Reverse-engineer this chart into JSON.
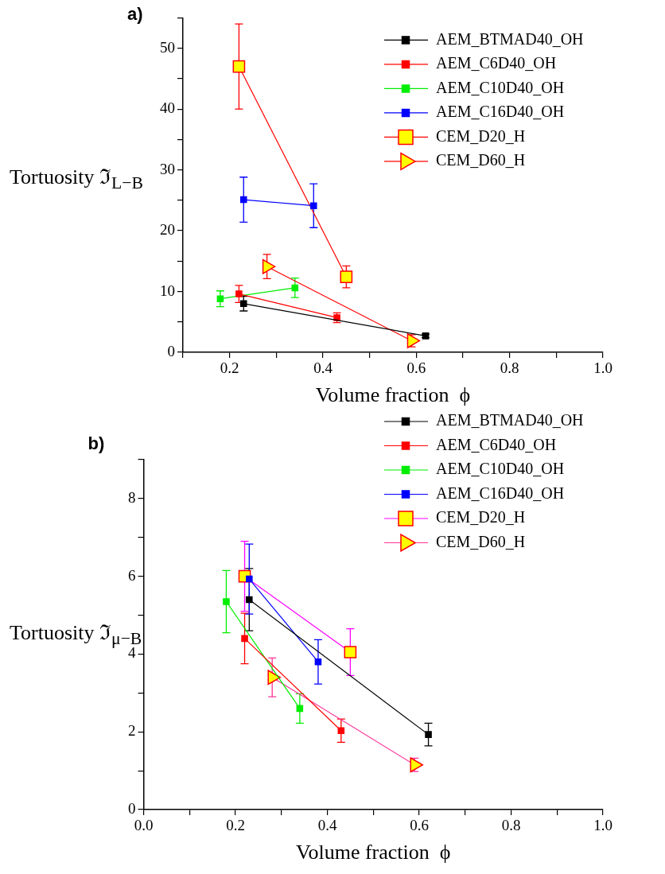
{
  "chart_data": [
    {
      "type": "line",
      "title": "a)",
      "xlabel": "Volume fraction  ϕ",
      "ylabel": "Tortuosity  ℑ$_{L−B}$",
      "xlim": [
        0.1,
        1.0
      ],
      "ylim": [
        0,
        55
      ],
      "xticks": [
        {
          "value": 0.1,
          "label": null
        },
        0.2,
        {
          "value": 0.3,
          "label": null
        },
        0.4,
        {
          "value": 0.5,
          "label": null
        },
        0.6,
        {
          "value": 0.7,
          "label": null
        },
        0.8,
        {
          "value": 0.9,
          "label": null
        },
        {
          "value": 1.0,
          "label": "1.0"
        }
      ],
      "yticks": [
        0,
        {
          "value": 5,
          "label": null
        },
        10,
        {
          "value": 15,
          "label": null
        },
        20,
        {
          "value": 25,
          "label": null
        },
        30,
        {
          "value": 35,
          "label": null
        },
        40,
        {
          "value": 45,
          "label": null
        },
        50,
        {
          "value": 55,
          "label": null
        }
      ],
      "grid": false,
      "legend": "top right",
      "series": [
        {
          "name": "AEM_BTMAD40_OH",
          "color": "#000000",
          "marker": "square",
          "x": [
            0.23,
            0.62
          ],
          "values": [
            8.0,
            2.7
          ],
          "errors": [
            1.2,
            0.3
          ]
        },
        {
          "name": "AEM_C6D40_OH",
          "color": "#ff0000",
          "marker": "square",
          "x": [
            0.22,
            0.43
          ],
          "values": [
            9.6,
            5.7
          ],
          "errors": [
            1.4,
            0.8
          ]
        },
        {
          "name": "AEM_C10D40_OH",
          "color": "#00ee00",
          "marker": "square",
          "x": [
            0.18,
            0.34
          ],
          "values": [
            8.8,
            10.6
          ],
          "errors": [
            1.3,
            1.6
          ]
        },
        {
          "name": "AEM_C16D40_OH",
          "color": "#0000ff",
          "marker": "square",
          "x": [
            0.23,
            0.38
          ],
          "values": [
            25.1,
            24.1
          ],
          "errors": [
            3.7,
            3.6
          ]
        },
        {
          "name": "CEM_D20_H",
          "color": "#ff0000",
          "colors": [
            "#ffff00",
            "#ffff00"
          ],
          "marker": "square",
          "x": [
            0.22,
            0.45
          ],
          "values": [
            47,
            12.4
          ],
          "errors": [
            7,
            1.8
          ]
        },
        {
          "name": "CEM_D60_H",
          "color": "#ff0000",
          "colors": [
            "#ffff00",
            "#ffff00"
          ],
          "marker": "triangle",
          "x": [
            0.28,
            0.59
          ],
          "values": [
            14.1,
            1.9
          ],
          "errors": [
            2,
            1
          ]
        }
      ]
    },
    {
      "type": "line",
      "title": "b)",
      "xlabel": "Volume fraction  ϕ",
      "ylabel": "Tortuosity  ℑ$_{μ−B}$",
      "xlim": [
        0.0,
        1.0
      ],
      "ylim": [
        0,
        9
      ],
      "xticks": [
        {
          "value": 0.0,
          "label": "0.0"
        },
        {
          "value": 0.1,
          "label": null
        },
        0.2,
        {
          "value": 0.3,
          "label": null
        },
        0.4,
        {
          "value": 0.5,
          "label": null
        },
        0.6,
        {
          "value": 0.7,
          "label": null
        },
        0.8,
        {
          "value": 0.9,
          "label": null
        },
        {
          "value": 1.0,
          "label": "1.0"
        }
      ],
      "yticks": [
        0,
        {
          "value": 1,
          "label": null
        },
        2,
        {
          "value": 3,
          "label": null
        },
        4,
        {
          "value": 5,
          "label": null
        },
        6,
        {
          "value": 7,
          "label": null
        },
        8,
        {
          "value": 9,
          "label": null
        }
      ],
      "grid": false,
      "legend": "top right",
      "series": [
        {
          "name": "AEM_BTMAD40_OH",
          "color": "#000000",
          "marker": "square",
          "x": [
            0.23,
            0.62
          ],
          "values": [
            5.4,
            1.93
          ],
          "errors": [
            0.8,
            0.29
          ]
        },
        {
          "name": "AEM_C6D40_OH",
          "color": "#ff0000",
          "marker": "square",
          "x": [
            0.22,
            0.43
          ],
          "values": [
            4.4,
            2.03
          ],
          "errors": [
            0.65,
            0.3
          ]
        },
        {
          "name": "AEM_C10D40_OH",
          "color": "#00ee00",
          "marker": "square",
          "x": [
            0.18,
            0.34
          ],
          "values": [
            5.35,
            2.6
          ],
          "errors": [
            0.8,
            0.38
          ]
        },
        {
          "name": "AEM_C16D40_OH",
          "color": "#0000ff",
          "marker": "square",
          "x": [
            0.23,
            0.38
          ],
          "values": [
            5.93,
            3.8
          ],
          "errors": [
            0.9,
            0.57
          ]
        },
        {
          "name": "CEM_D20_H",
          "color": "#ff00ff",
          "colors": [
            "#ffff00",
            "#ffff00"
          ],
          "marker": "square",
          "x": [
            0.22,
            0.45
          ],
          "values": [
            6.0,
            4.05
          ],
          "errors": [
            0.9,
            0.6
          ]
        },
        {
          "name": "CEM_D60_H",
          "color": "#ff3399",
          "colors": [
            "#ffff00",
            "#ffff00"
          ],
          "marker": "triangle",
          "x": [
            0.28,
            0.59
          ],
          "values": [
            3.4,
            1.15
          ],
          "errors": [
            0.5,
            0.17
          ]
        }
      ]
    }
  ]
}
